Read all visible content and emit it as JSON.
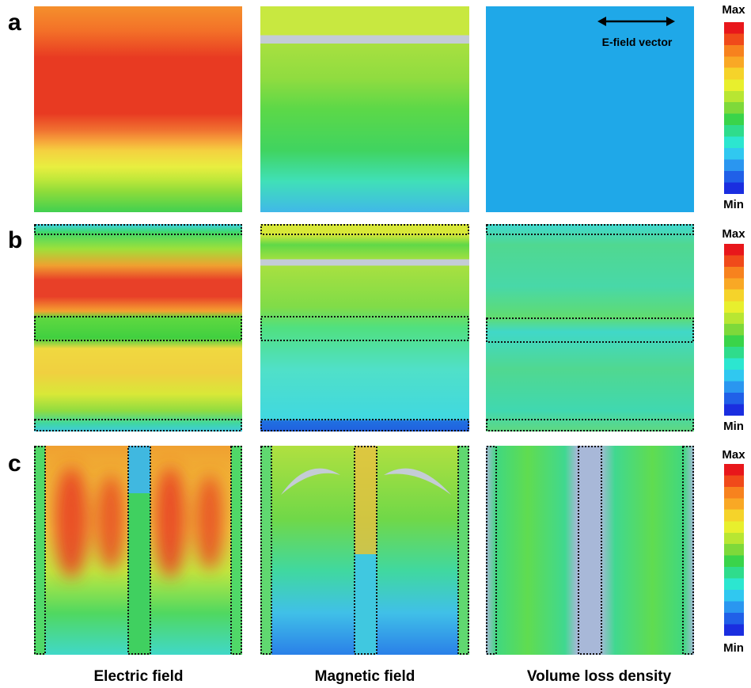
{
  "row_labels": [
    "a",
    "b",
    "c"
  ],
  "column_labels": [
    "Electric field",
    "Magnetic field",
    "Volume loss density"
  ],
  "annotation": "E-field vector",
  "colorbars": [
    {
      "max": "Max",
      "min": "Min"
    },
    {
      "max": "Max",
      "min": "Min"
    },
    {
      "max": "Max",
      "min": "Min"
    }
  ]
}
